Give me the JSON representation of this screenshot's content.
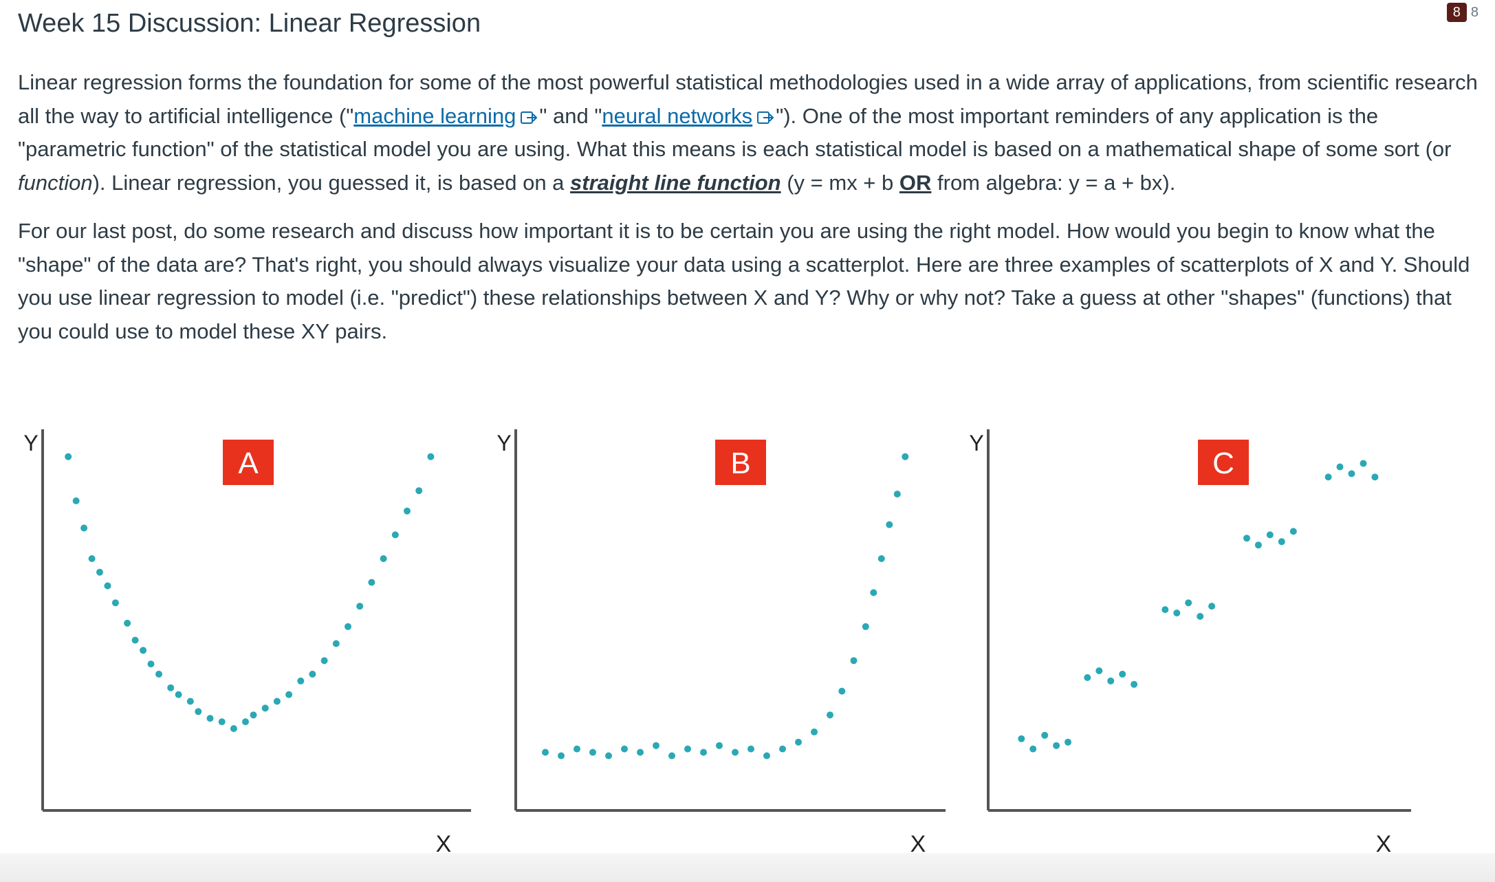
{
  "discussion": {
    "title": "Week 15 Discussion: Linear Regression",
    "badge": {
      "unread": "8",
      "total": "8"
    }
  },
  "p1": {
    "t1": "Linear regression forms the foundation for some of the most powerful statistical methodologies used in a wide array of applications, from scientific research all the way to artificial intelligence (\"",
    "link1": "machine learning",
    "t2": "\" and \"",
    "link2": "neural networks",
    "t3": "\"). One of the most important reminders of any application is the \"parametric function\" of the statistical model you are using. What this means is each statistical model is based on a mathematical shape of some sort (or ",
    "em": "function",
    "t4": "). Linear regression, you guessed it, is based on a ",
    "link3": "straight line function",
    "t5": " (y = mx + b ",
    "or": "OR",
    "t6": " from algebra: y = a + bx)."
  },
  "p2": {
    "text": "For our last post, do some research and discuss how important it is to be certain you are using the right model. How would you begin to know what the \"shape\" of the data are? That's right, you should always visualize your data using a scatterplot. Here are three examples of scatterplots of X and Y. Should you use linear regression to model (i.e. \"predict\") these relationships between X and Y? Why or why not? Take a guess at other \"shapes\" (functions) that you could use to model these XY pairs."
  },
  "icons": {
    "external_link": "external-link-icon"
  },
  "colors": {
    "text": "#2d3b45",
    "link": "#0b6aa8",
    "point": "#2aa8b5",
    "panel_label_bg": "#e8321e",
    "badge_bg": "#5b1d17"
  },
  "chart_data": [
    {
      "type": "scatter",
      "panel_label": "A",
      "xlabel": "X",
      "ylabel": "Y",
      "xlim": [
        0,
        10
      ],
      "ylim": [
        0,
        10
      ],
      "points": [
        [
          0.3,
          9.6
        ],
        [
          0.5,
          8.3
        ],
        [
          0.7,
          7.5
        ],
        [
          0.9,
          6.6
        ],
        [
          1.1,
          6.2
        ],
        [
          1.3,
          5.8
        ],
        [
          1.5,
          5.3
        ],
        [
          1.8,
          4.7
        ],
        [
          2.0,
          4.2
        ],
        [
          2.2,
          3.9
        ],
        [
          2.4,
          3.5
        ],
        [
          2.6,
          3.2
        ],
        [
          2.9,
          2.8
        ],
        [
          3.1,
          2.6
        ],
        [
          3.4,
          2.4
        ],
        [
          3.6,
          2.1
        ],
        [
          3.9,
          1.9
        ],
        [
          4.2,
          1.8
        ],
        [
          4.5,
          1.6
        ],
        [
          4.8,
          1.8
        ],
        [
          5.0,
          2.0
        ],
        [
          5.3,
          2.2
        ],
        [
          5.6,
          2.4
        ],
        [
          5.9,
          2.6
        ],
        [
          6.2,
          3.0
        ],
        [
          6.5,
          3.2
        ],
        [
          6.8,
          3.6
        ],
        [
          7.1,
          4.1
        ],
        [
          7.4,
          4.6
        ],
        [
          7.7,
          5.2
        ],
        [
          8.0,
          5.9
        ],
        [
          8.3,
          6.6
        ],
        [
          8.6,
          7.3
        ],
        [
          8.9,
          8.0
        ],
        [
          9.2,
          8.6
        ],
        [
          9.5,
          9.6
        ]
      ]
    },
    {
      "type": "scatter",
      "panel_label": "B",
      "xlabel": "X",
      "ylabel": "Y",
      "xlim": [
        0,
        10
      ],
      "ylim": [
        0,
        10
      ],
      "points": [
        [
          0.4,
          0.9
        ],
        [
          0.8,
          0.8
        ],
        [
          1.2,
          1.0
        ],
        [
          1.6,
          0.9
        ],
        [
          2.0,
          0.8
        ],
        [
          2.4,
          1.0
        ],
        [
          2.8,
          0.9
        ],
        [
          3.2,
          1.1
        ],
        [
          3.6,
          0.8
        ],
        [
          4.0,
          1.0
        ],
        [
          4.4,
          0.9
        ],
        [
          4.8,
          1.1
        ],
        [
          5.2,
          0.9
        ],
        [
          5.6,
          1.0
        ],
        [
          6.0,
          0.8
        ],
        [
          6.4,
          1.0
        ],
        [
          6.8,
          1.2
        ],
        [
          7.2,
          1.5
        ],
        [
          7.6,
          2.0
        ],
        [
          7.9,
          2.7
        ],
        [
          8.2,
          3.6
        ],
        [
          8.5,
          4.6
        ],
        [
          8.7,
          5.6
        ],
        [
          8.9,
          6.6
        ],
        [
          9.1,
          7.6
        ],
        [
          9.3,
          8.5
        ],
        [
          9.5,
          9.6
        ]
      ]
    },
    {
      "type": "scatter",
      "panel_label": "C",
      "xlabel": "X",
      "ylabel": "Y",
      "xlim": [
        0,
        10
      ],
      "ylim": [
        0,
        10
      ],
      "points": [
        [
          0.5,
          1.3
        ],
        [
          0.8,
          1.0
        ],
        [
          1.1,
          1.4
        ],
        [
          1.4,
          1.1
        ],
        [
          1.7,
          1.2
        ],
        [
          2.2,
          3.1
        ],
        [
          2.5,
          3.3
        ],
        [
          2.8,
          3.0
        ],
        [
          3.1,
          3.2
        ],
        [
          3.4,
          2.9
        ],
        [
          4.2,
          5.1
        ],
        [
          4.5,
          5.0
        ],
        [
          4.8,
          5.3
        ],
        [
          5.1,
          4.9
        ],
        [
          5.4,
          5.2
        ],
        [
          6.3,
          7.2
        ],
        [
          6.6,
          7.0
        ],
        [
          6.9,
          7.3
        ],
        [
          7.2,
          7.1
        ],
        [
          7.5,
          7.4
        ],
        [
          8.4,
          9.0
        ],
        [
          8.7,
          9.3
        ],
        [
          9.0,
          9.1
        ],
        [
          9.3,
          9.4
        ],
        [
          9.6,
          9.0
        ]
      ]
    }
  ]
}
